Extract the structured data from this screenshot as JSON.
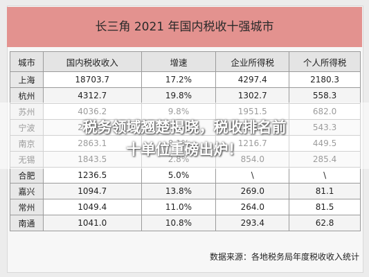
{
  "table": {
    "title": "长三角 2021 年国内税收十强城市",
    "columns": [
      "城市",
      "国内税收收入",
      "增速",
      "企业所得税",
      "个人所得税"
    ],
    "rows": [
      [
        "上海",
        "18703.7",
        "17.2%",
        "4297.4",
        "2180.3"
      ],
      [
        "杭州",
        "4312.7",
        "19.8%",
        "1302.7",
        "558.3"
      ],
      [
        "苏州",
        "4036.2",
        "9.8%",
        "1951.5",
        "682.0"
      ],
      [
        "宁波",
        "2968.1",
        "15.6%",
        "1231.4",
        "543.3"
      ],
      [
        "南京",
        "2863.1",
        "8.1%",
        "1216.7",
        "449.5"
      ],
      [
        "无锡",
        "1843.5",
        "2.8%",
        "854.0",
        "285.4"
      ],
      [
        "合肥",
        "1236.5",
        "5.0%",
        "\\",
        "\\"
      ],
      [
        "嘉兴",
        "1094.7",
        "13.8%",
        "269.0",
        "81.1"
      ],
      [
        "常州",
        "1049.4",
        "11.0%",
        "264.0",
        "81.5"
      ],
      [
        "南通",
        "1041.0",
        "10.8%",
        "293.4",
        "62.8"
      ]
    ],
    "source": "数据来源：各地税务局年度税收收入统计"
  },
  "overlay": {
    "lines": [
      "税务领域翘楚揭晓，税收排名前",
      "十单位重磅出炉！"
    ]
  }
}
